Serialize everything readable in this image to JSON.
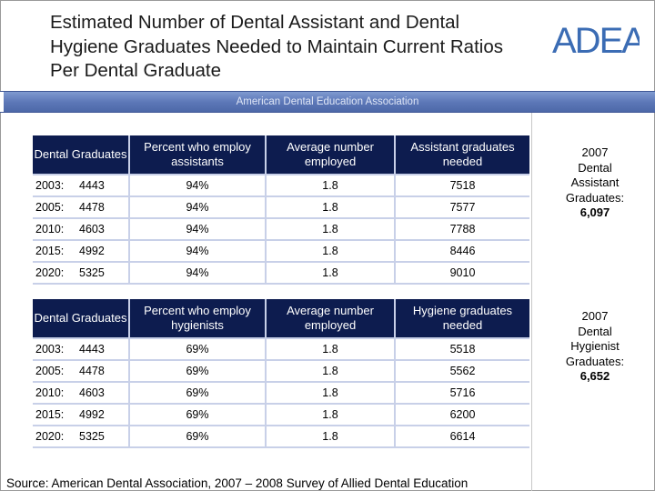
{
  "title": "Estimated Number of  Dental Assistant and Dental Hygiene Graduates Needed to Maintain Current Ratios Per Dental Graduate",
  "logo_text": "ADEA",
  "banner": "American Dental Education Association",
  "colors": {
    "banner": "#5d78b8",
    "table_header": "#0d1c4f",
    "table_rule": "#c8d0e8",
    "logo": "#3b6cb4"
  },
  "assistant_table": {
    "headers": [
      "Dental Graduates",
      "Percent who employ assistants",
      "Average number employed",
      "Assistant graduates needed"
    ],
    "rows": [
      {
        "year": "2003:",
        "grads": "4443",
        "pct": "94%",
        "avg": "1.8",
        "needed": "7518"
      },
      {
        "year": "2005:",
        "grads": "4478",
        "pct": "94%",
        "avg": "1.8",
        "needed": "7577"
      },
      {
        "year": "2010:",
        "grads": "4603",
        "pct": "94%",
        "avg": "1.8",
        "needed": "7788"
      },
      {
        "year": "2015:",
        "grads": "4992",
        "pct": "94%",
        "avg": "1.8",
        "needed": "8446"
      },
      {
        "year": "2020:",
        "grads": "5325",
        "pct": "94%",
        "avg": "1.8",
        "needed": "9010"
      }
    ]
  },
  "hygiene_table": {
    "headers": [
      "Dental Graduates",
      "Percent who employ hygienists",
      "Average number employed",
      "Hygiene graduates needed"
    ],
    "rows": [
      {
        "year": "2003:",
        "grads": "4443",
        "pct": "69%",
        "avg": "1.8",
        "needed": "5518"
      },
      {
        "year": "2005:",
        "grads": "4478",
        "pct": "69%",
        "avg": "1.8",
        "needed": "5562"
      },
      {
        "year": "2010:",
        "grads": "4603",
        "pct": "69%",
        "avg": "1.8",
        "needed": "5716"
      },
      {
        "year": "2015:",
        "grads": "4992",
        "pct": "69%",
        "avg": "1.8",
        "needed": "6200"
      },
      {
        "year": "2020:",
        "grads": "5325",
        "pct": "69%",
        "avg": "1.8",
        "needed": "6614"
      }
    ]
  },
  "assistant_note": {
    "lines": [
      "2007",
      "Dental",
      "Assistant",
      "Graduates:"
    ],
    "value": "6,097"
  },
  "hygienist_note": {
    "lines": [
      "2007",
      "Dental",
      "Hygienist",
      "Graduates:"
    ],
    "value": "6,652"
  },
  "source": "Source: American Dental Association, 2007 – 2008 Survey of Allied Dental Education"
}
